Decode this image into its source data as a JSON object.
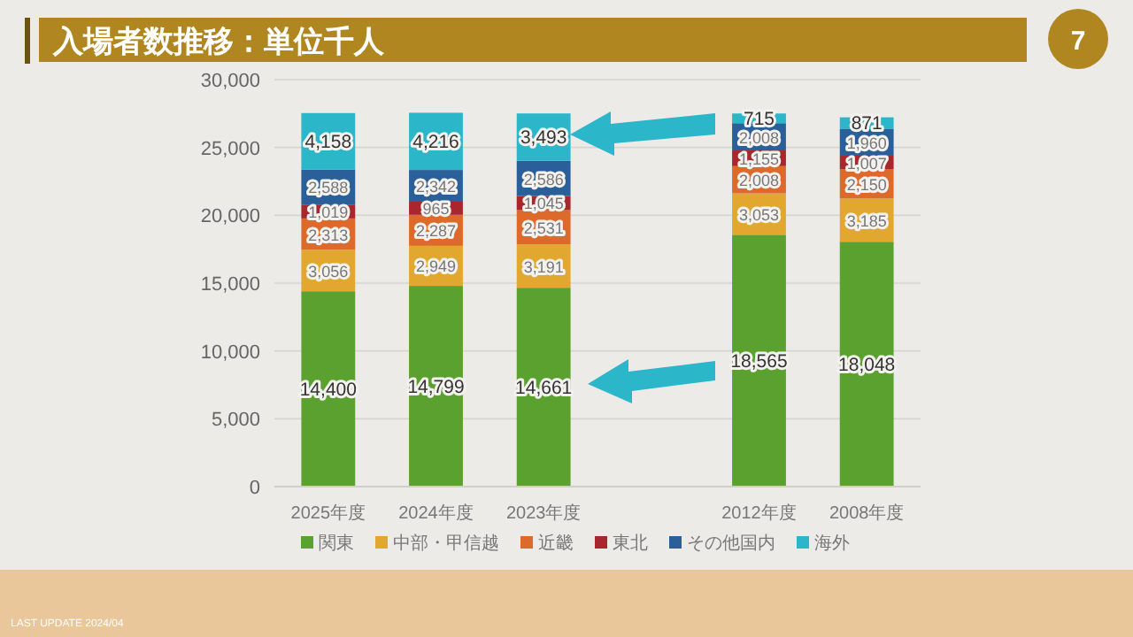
{
  "chart_data": {
    "type": "bar",
    "title": "入場者数推移：単位千人",
    "stacked": true,
    "categories": [
      "2025年度",
      "2024年度",
      "2023年度",
      null,
      "2012年度",
      "2008年度"
    ],
    "series": [
      {
        "name": "関東",
        "color": "#5ba12f",
        "values": [
          14400,
          14799,
          14661,
          null,
          18565,
          18048
        ],
        "value_labels": [
          "14,400",
          "14,799",
          "14,661",
          null,
          "18,565",
          "18,048"
        ]
      },
      {
        "name": "中部・甲信越",
        "color": "#e2a72e",
        "values": [
          3056,
          2949,
          3191,
          null,
          3053,
          3185
        ],
        "value_labels": [
          "3,056",
          "2,949",
          "3,191",
          null,
          "3,053",
          "3,185"
        ]
      },
      {
        "name": "近畿",
        "color": "#dd6a2a",
        "values": [
          2313,
          2287,
          2531,
          null,
          2008,
          2150
        ],
        "value_labels": [
          "2,313",
          "2,287",
          "2,531",
          null,
          "2,008",
          "2,150"
        ]
      },
      {
        "name": "東北",
        "color": "#a8262c",
        "values": [
          1019,
          965,
          1045,
          null,
          1155,
          1007
        ],
        "value_labels": [
          "1,019",
          "965",
          "1,045",
          null,
          "1,155",
          "1,007"
        ]
      },
      {
        "name": "その他国内",
        "color": "#2a5f9a",
        "values": [
          2588,
          2342,
          2586,
          null,
          2008,
          1960
        ],
        "value_labels": [
          "2,588",
          "2,342",
          "2,586",
          null,
          "2,008",
          "1,960"
        ]
      },
      {
        "name": "海外",
        "color": "#2bb6c9",
        "values": [
          4158,
          4216,
          3493,
          null,
          715,
          871
        ],
        "value_labels": [
          "4,158",
          "4,216",
          "3,493",
          null,
          "715",
          "871"
        ]
      }
    ],
    "ylim": [
      0,
      30000
    ],
    "yticks": [
      {
        "value": 0,
        "label": "0"
      },
      {
        "value": 5000,
        "label": "5,000"
      },
      {
        "value": 10000,
        "label": "10,000"
      },
      {
        "value": 15000,
        "label": "15,000"
      },
      {
        "value": 20000,
        "label": "20,000"
      },
      {
        "value": 25000,
        "label": "25,000"
      },
      {
        "value": 30000,
        "label": "30,000"
      }
    ],
    "grid": "y",
    "legend": "bottom",
    "annotations": [
      "7",
      "LAST UPDATE 2024/04"
    ]
  }
}
